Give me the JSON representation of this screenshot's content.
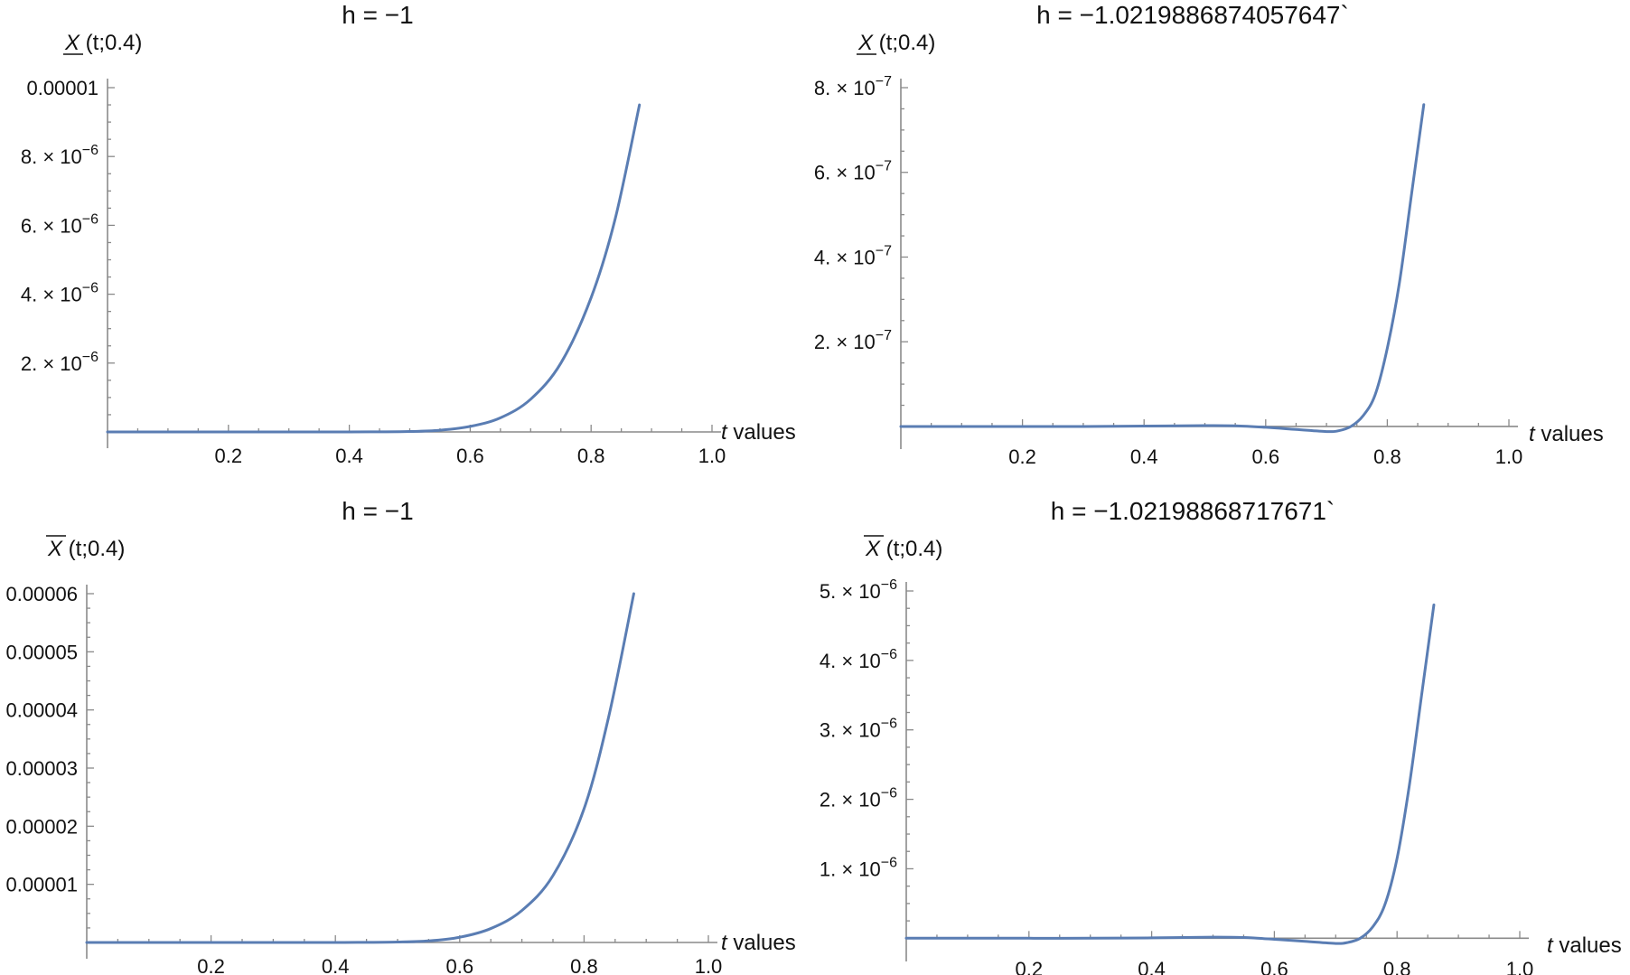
{
  "style": {
    "line_color": "#5a7db3"
  },
  "chart_data": [
    {
      "type": "line",
      "title": "h = −1",
      "xlabel_italic": "t",
      "xlabel_rest": " values",
      "ylabel_sym": "X",
      "ylabel_bar": "under",
      "ylabel_rest": "(t;0.4)",
      "xlim": [
        0,
        1.0
      ],
      "ylim": [
        0,
        1e-05
      ],
      "x_ticks": [
        "0.2",
        "0.4",
        "0.6",
        "0.8",
        "1.0"
      ],
      "y_ticks": [
        {
          "value": 2e-06,
          "mantissa": "2.",
          "exponent": "−6"
        },
        {
          "value": 4e-06,
          "mantissa": "4.",
          "exponent": "−6"
        },
        {
          "value": 6e-06,
          "mantissa": "6.",
          "exponent": "−6"
        },
        {
          "value": 8e-06,
          "mantissa": "8.",
          "exponent": "−6"
        },
        {
          "value": 1e-05,
          "plain": "0.00001"
        }
      ],
      "series": [
        {
          "x": [
            0,
            0.1,
            0.2,
            0.3,
            0.4,
            0.45,
            0.5,
            0.55,
            0.6,
            0.65,
            0.7,
            0.75,
            0.8,
            0.84,
            0.88
          ],
          "y": [
            0,
            0,
            0,
            0,
            1e-09,
            3e-09,
            1.2e-08,
            5e-08,
            1.6e-07,
            4.1e-07,
            9.5e-07,
            2e-06,
            3.9e-06,
            6.2e-06,
            9.5e-06
          ]
        }
      ]
    },
    {
      "type": "line",
      "title": "h = −1.0219886874057647`",
      "xlabel_italic": "t",
      "xlabel_rest": " values",
      "ylabel_sym": "X",
      "ylabel_bar": "under",
      "ylabel_rest": "(t;0.4)",
      "xlim": [
        0,
        1.0
      ],
      "ylim": [
        -1.5e-08,
        8e-07
      ],
      "x_ticks": [
        "0.2",
        "0.4",
        "0.6",
        "0.8",
        "1.0"
      ],
      "y_ticks": [
        {
          "value": 2e-07,
          "mantissa": "2.",
          "exponent": "−7"
        },
        {
          "value": 4e-07,
          "mantissa": "4.",
          "exponent": "−7"
        },
        {
          "value": 6e-07,
          "mantissa": "6.",
          "exponent": "−7"
        },
        {
          "value": 8e-07,
          "mantissa": "8.",
          "exponent": "−7"
        }
      ],
      "series": [
        {
          "x": [
            0,
            0.1,
            0.2,
            0.3,
            0.4,
            0.5,
            0.55,
            0.6,
            0.65,
            0.7,
            0.72,
            0.74,
            0.76,
            0.78,
            0.8,
            0.82,
            0.84,
            0.86
          ],
          "y": [
            0,
            0,
            0,
            0,
            1e-09,
            2e-09,
            1.5e-09,
            -2e-09,
            -7e-09,
            -1.2e-08,
            -1e-08,
            0,
            2.5e-08,
            7.5e-08,
            1.85e-07,
            3.4e-07,
            5.5e-07,
            7.6e-07
          ]
        }
      ]
    },
    {
      "type": "line",
      "title": "h = −1",
      "xlabel_italic": "t",
      "xlabel_rest": " values",
      "ylabel_sym": "X",
      "ylabel_bar": "over",
      "ylabel_rest": "(t;0.4)",
      "xlim": [
        0,
        1.0
      ],
      "ylim": [
        0,
        6e-05
      ],
      "x_ticks": [
        "0.2",
        "0.4",
        "0.6",
        "0.8",
        "1.0"
      ],
      "y_ticks": [
        {
          "value": 1e-05,
          "plain": "0.00001"
        },
        {
          "value": 2e-05,
          "plain": "0.00002"
        },
        {
          "value": 3e-05,
          "plain": "0.00003"
        },
        {
          "value": 4e-05,
          "plain": "0.00004"
        },
        {
          "value": 5e-05,
          "plain": "0.00005"
        },
        {
          "value": 6e-05,
          "plain": "0.00006"
        }
      ],
      "series": [
        {
          "x": [
            0,
            0.1,
            0.2,
            0.3,
            0.4,
            0.45,
            0.5,
            0.55,
            0.6,
            0.65,
            0.7,
            0.75,
            0.8,
            0.84,
            0.88
          ],
          "y": [
            0,
            0,
            0,
            0,
            5e-09,
            2e-08,
            7e-08,
            2.7e-07,
            9e-07,
            2.4e-06,
            5.5e-06,
            1.15e-05,
            2.3e-05,
            3.9e-05,
            6e-05
          ]
        }
      ]
    },
    {
      "type": "line",
      "title": "h = −1.02198868717671`",
      "xlabel_italic": "t",
      "xlabel_rest": " values",
      "ylabel_sym": "X",
      "ylabel_bar": "over",
      "ylabel_rest": "(t;0.4)",
      "xlim": [
        0,
        1.0
      ],
      "ylim": [
        -1e-07,
        5e-06
      ],
      "x_ticks": [
        "0.2",
        "0.4",
        "0.6",
        "0.8",
        "1.0"
      ],
      "y_ticks": [
        {
          "value": 1e-06,
          "mantissa": "1.",
          "exponent": "−6"
        },
        {
          "value": 2e-06,
          "mantissa": "2.",
          "exponent": "−6"
        },
        {
          "value": 3e-06,
          "mantissa": "3.",
          "exponent": "−6"
        },
        {
          "value": 4e-06,
          "mantissa": "4.",
          "exponent": "−6"
        },
        {
          "value": 5e-06,
          "mantissa": "5.",
          "exponent": "−6"
        }
      ],
      "series": [
        {
          "x": [
            0,
            0.1,
            0.2,
            0.3,
            0.4,
            0.5,
            0.55,
            0.6,
            0.65,
            0.7,
            0.72,
            0.74,
            0.76,
            0.78,
            0.8,
            0.82,
            0.84,
            0.86
          ],
          "y": [
            0,
            0,
            0,
            0,
            5e-09,
            1.5e-08,
            1e-08,
            -1.5e-08,
            -4.5e-08,
            -7.5e-08,
            -6e-08,
            0,
            1.6e-07,
            4.8e-07,
            1.15e-06,
            2.2e-06,
            3.5e-06,
            4.8e-06
          ]
        }
      ]
    }
  ]
}
